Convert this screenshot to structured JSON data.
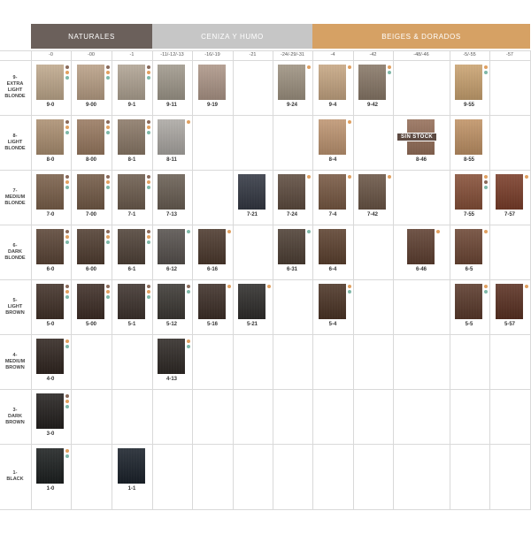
{
  "groups": [
    {
      "key": "naturales",
      "label": "NATURALES",
      "color": "#6b605b"
    },
    {
      "key": "ceniza",
      "label": "CENIZA Y HUMO",
      "color": "#c6c6c6"
    },
    {
      "key": "beiges",
      "label": "BEIGES & DORADOS",
      "color": "#d6a164"
    }
  ],
  "columns": [
    "-0",
    "-00",
    "-1",
    "-11/-12/-13",
    "-16/-19",
    "-21",
    "-24/-29/-31",
    "-4",
    "-42",
    "-48/-46",
    "-5/-55",
    "-57"
  ],
  "rows": [
    {
      "key": "9",
      "label": [
        "9-",
        "EXTRA",
        "LIGHT",
        "BLONDE"
      ]
    },
    {
      "key": "8",
      "label": [
        "8-",
        "LIGHT",
        "BLONDE"
      ]
    },
    {
      "key": "7",
      "label": [
        "7-",
        "MEDIUM",
        "BLONDE"
      ]
    },
    {
      "key": "6",
      "label": [
        "6-",
        "DARK",
        "BLONDE"
      ]
    },
    {
      "key": "5",
      "label": [
        "5-",
        "LIGHT",
        "BROWN"
      ]
    },
    {
      "key": "4",
      "label": [
        "4-",
        "MEDIUM",
        "BROWN"
      ]
    },
    {
      "key": "3",
      "label": [
        "3-",
        "DARK",
        "BROWN"
      ]
    },
    {
      "key": "1",
      "label": [
        "1-",
        "BLACK"
      ]
    }
  ],
  "dot_colors": {
    "brown": "#8a6a5a",
    "orange": "#e0a060",
    "teal": "#7fb8a8"
  },
  "swatches": [
    {
      "row": 0,
      "col": 0,
      "code": "9-0",
      "color": "#c9b091",
      "dots": [
        "brown",
        "orange",
        "teal"
      ]
    },
    {
      "row": 0,
      "col": 1,
      "code": "9-00",
      "color": "#c2a68a",
      "dots": [
        "brown",
        "orange",
        "teal"
      ]
    },
    {
      "row": 0,
      "col": 2,
      "code": "9-1",
      "color": "#b8aa98",
      "dots": [
        "brown",
        "orange",
        "teal"
      ]
    },
    {
      "row": 0,
      "col": 3,
      "code": "9-11",
      "color": "#a69e90",
      "dots": []
    },
    {
      "row": 0,
      "col": 4,
      "code": "9-19",
      "color": "#b59c8c",
      "dots": []
    },
    {
      "row": 0,
      "col": 6,
      "code": "9-24",
      "color": "#a49784",
      "dots": [
        "orange"
      ]
    },
    {
      "row": 0,
      "col": 7,
      "code": "9-4",
      "color": "#d0ad86",
      "dots": [
        "orange"
      ]
    },
    {
      "row": 0,
      "col": 8,
      "code": "9-42",
      "color": "#8c7a68",
      "dots": [
        "orange",
        "teal"
      ]
    },
    {
      "row": 0,
      "col": 10,
      "code": "9-55",
      "color": "#d4a972",
      "dots": [
        "orange",
        "teal"
      ]
    },
    {
      "row": 1,
      "col": 0,
      "code": "8-0",
      "color": "#b39473",
      "dots": [
        "brown",
        "orange",
        "teal"
      ]
    },
    {
      "row": 1,
      "col": 1,
      "code": "8-00",
      "color": "#9e7c60",
      "dots": [
        "brown",
        "orange",
        "teal"
      ]
    },
    {
      "row": 1,
      "col": 2,
      "code": "8-1",
      "color": "#8f7b68",
      "dots": [
        "brown",
        "orange",
        "teal"
      ]
    },
    {
      "row": 1,
      "col": 3,
      "code": "8-11",
      "color": "#b3afaa",
      "dots": [
        "orange"
      ]
    },
    {
      "row": 1,
      "col": 7,
      "code": "8-4",
      "color": "#c79a73",
      "dots": [
        "orange"
      ]
    },
    {
      "row": 1,
      "col": 9,
      "code": "8-46",
      "color": "#9a7058",
      "dots": [],
      "badge": "SIN STOCK"
    },
    {
      "row": 1,
      "col": 10,
      "code": "8-55",
      "color": "#c99766",
      "dots": []
    },
    {
      "row": 2,
      "col": 0,
      "code": "7-0",
      "color": "#7d6048",
      "dots": [
        "brown",
        "orange",
        "teal"
      ]
    },
    {
      "row": 2,
      "col": 1,
      "code": "7-00",
      "color": "#755a44",
      "dots": [
        "brown",
        "orange",
        "teal"
      ]
    },
    {
      "row": 2,
      "col": 2,
      "code": "7-1",
      "color": "#6e5c4c",
      "dots": [
        "brown",
        "orange",
        "teal"
      ]
    },
    {
      "row": 2,
      "col": 3,
      "code": "7-13",
      "color": "#6a5e52",
      "dots": []
    },
    {
      "row": 2,
      "col": 5,
      "code": "7-21",
      "color": "#2f3440",
      "dots": []
    },
    {
      "row": 2,
      "col": 6,
      "code": "7-24",
      "color": "#5e4a3c",
      "dots": [
        "orange"
      ]
    },
    {
      "row": 2,
      "col": 7,
      "code": "7-4",
      "color": "#7a5840",
      "dots": [
        "orange"
      ]
    },
    {
      "row": 2,
      "col": 8,
      "code": "7-42",
      "color": "#6b5443",
      "dots": [
        "orange"
      ]
    },
    {
      "row": 2,
      "col": 10,
      "code": "7-55",
      "color": "#8a4e34",
      "dots": [
        "orange",
        "brown",
        "teal"
      ]
    },
    {
      "row": 2,
      "col": 11,
      "code": "7-57",
      "color": "#7d3a24",
      "dots": [
        "orange"
      ]
    },
    {
      "row": 3,
      "col": 0,
      "code": "6-0",
      "color": "#5a4232",
      "dots": [
        "brown",
        "orange",
        "teal"
      ]
    },
    {
      "row": 3,
      "col": 1,
      "code": "6-00",
      "color": "#4f3a2c",
      "dots": [
        "brown",
        "orange",
        "teal"
      ]
    },
    {
      "row": 3,
      "col": 2,
      "code": "6-1",
      "color": "#4e3f34",
      "dots": [
        "brown",
        "orange",
        "teal"
      ]
    },
    {
      "row": 3,
      "col": 3,
      "code": "6-12",
      "color": "#56504c",
      "dots": [
        "teal"
      ]
    },
    {
      "row": 3,
      "col": 4,
      "code": "6-16",
      "color": "#4a3528",
      "dots": [
        "orange"
      ]
    },
    {
      "row": 3,
      "col": 6,
      "code": "6-31",
      "color": "#4c3c30",
      "dots": [
        "teal"
      ]
    },
    {
      "row": 3,
      "col": 7,
      "code": "6-4",
      "color": "#5c3e2a",
      "dots": []
    },
    {
      "row": 3,
      "col": 9,
      "code": "6-46",
      "color": "#5e3c2c",
      "dots": [
        "orange"
      ]
    },
    {
      "row": 3,
      "col": 10,
      "code": "6-5",
      "color": "#6e4430",
      "dots": [
        "orange"
      ]
    },
    {
      "row": 4,
      "col": 0,
      "code": "5-0",
      "color": "#3e2c22",
      "dots": [
        "brown",
        "orange",
        "teal"
      ]
    },
    {
      "row": 4,
      "col": 1,
      "code": "5-00",
      "color": "#3a2820",
      "dots": [
        "brown",
        "orange",
        "teal"
      ]
    },
    {
      "row": 4,
      "col": 2,
      "code": "5-1",
      "color": "#3a2e28",
      "dots": [
        "brown",
        "orange",
        "teal"
      ]
    },
    {
      "row": 4,
      "col": 3,
      "code": "5-12",
      "color": "#38342f",
      "dots": [
        "brown",
        "teal"
      ]
    },
    {
      "row": 4,
      "col": 4,
      "code": "5-16",
      "color": "#3a2a22",
      "dots": [
        "orange"
      ]
    },
    {
      "row": 4,
      "col": 5,
      "code": "5-21",
      "color": "#2a2826",
      "dots": [
        "orange"
      ]
    },
    {
      "row": 4,
      "col": 7,
      "code": "5-4",
      "color": "#4a3020",
      "dots": [
        "orange",
        "teal"
      ]
    },
    {
      "row": 4,
      "col": 10,
      "code": "5-5",
      "color": "#5a3626",
      "dots": [
        "orange",
        "teal"
      ]
    },
    {
      "row": 4,
      "col": 11,
      "code": "5-57",
      "color": "#5a2c1c",
      "dots": [
        "orange"
      ]
    },
    {
      "row": 5,
      "col": 0,
      "code": "4-0",
      "color": "#2c201a",
      "dots": [
        "orange",
        "teal"
      ]
    },
    {
      "row": 5,
      "col": 3,
      "code": "4-13",
      "color": "#2a2420",
      "dots": [
        "orange",
        "teal"
      ]
    },
    {
      "row": 6,
      "col": 0,
      "code": "3-0",
      "color": "#1e1a18",
      "dots": [
        "brown",
        "orange",
        "teal"
      ]
    },
    {
      "row": 7,
      "col": 0,
      "code": "1-0",
      "color": "#161a1a",
      "dots": [
        "orange",
        "teal"
      ]
    },
    {
      "row": 7,
      "col": 2,
      "code": "1-1",
      "color": "#141c26",
      "dots": []
    }
  ]
}
